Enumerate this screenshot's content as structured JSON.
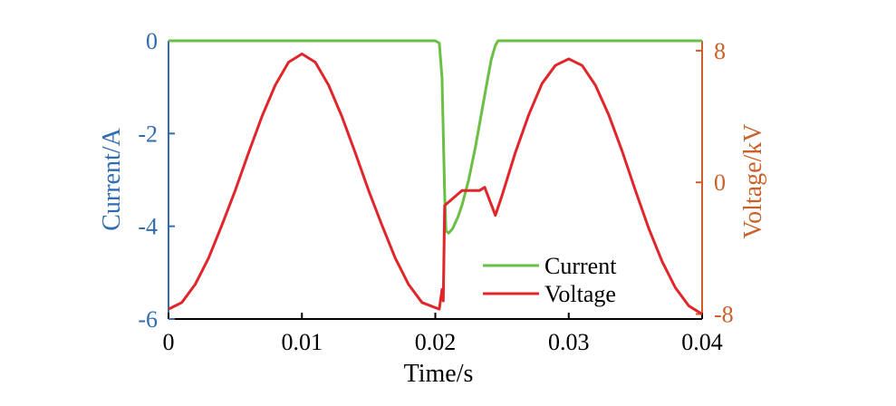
{
  "chart_data": {
    "type": "line",
    "xlabel": "Time/s",
    "ylabel_left": "Current/A",
    "ylabel_right": "Voltage/kV",
    "x_ticks": [
      0,
      0.01,
      0.02,
      0.03,
      0.04
    ],
    "x_tick_labels": [
      "0",
      "0.01",
      "0.02",
      "0.03",
      "0.04"
    ],
    "y_left_ticks": [
      0,
      -2,
      -4,
      -6
    ],
    "y_left_tick_labels": [
      "0",
      "-2",
      "-4",
      "-6"
    ],
    "y_right_ticks": [
      8,
      0,
      -8
    ],
    "y_right_tick_labels": [
      "8",
      "0",
      "-8"
    ],
    "xlim": [
      0,
      0.04
    ],
    "ylim_left": [
      -6,
      0
    ],
    "ylim_right": [
      -8.3,
      8.6
    ],
    "grid": false,
    "legend_position": "bottom-right",
    "colors": {
      "current": "#6abf45",
      "voltage": "#e0262a",
      "left_axis": "#2f6db2",
      "right_axis": "#c8622a"
    },
    "series": [
      {
        "name": "Current",
        "axis": "left",
        "x": [
          0,
          0.005,
          0.01,
          0.015,
          0.02,
          0.0203,
          0.0205,
          0.0206,
          0.0207,
          0.0208,
          0.021,
          0.0213,
          0.0217,
          0.022,
          0.0225,
          0.023,
          0.0235,
          0.024,
          0.0242,
          0.0245,
          0.0247,
          0.025,
          0.03,
          0.035,
          0.04
        ],
        "values": [
          0,
          0,
          0,
          0,
          0,
          -0.05,
          -0.8,
          -2.0,
          -3.3,
          -4.1,
          -4.15,
          -4.05,
          -3.8,
          -3.55,
          -3.0,
          -2.3,
          -1.5,
          -0.7,
          -0.4,
          -0.1,
          0,
          0,
          0,
          0,
          0
        ]
      },
      {
        "name": "Voltage",
        "axis": "right",
        "x": [
          0,
          0.001,
          0.002,
          0.003,
          0.004,
          0.005,
          0.006,
          0.007,
          0.008,
          0.009,
          0.01,
          0.011,
          0.012,
          0.013,
          0.014,
          0.015,
          0.016,
          0.017,
          0.018,
          0.019,
          0.0203,
          0.0205,
          0.0206,
          0.0207,
          0.021,
          0.022,
          0.0233,
          0.0237,
          0.0245,
          0.025,
          0.026,
          0.027,
          0.028,
          0.029,
          0.03,
          0.031,
          0.032,
          0.033,
          0.034,
          0.035,
          0.036,
          0.037,
          0.038,
          0.039,
          0.04
        ],
        "values": [
          -7.7,
          -7.3,
          -6.2,
          -4.6,
          -2.6,
          -0.5,
          1.8,
          4.0,
          5.9,
          7.3,
          7.8,
          7.3,
          5.9,
          4.0,
          1.8,
          -0.5,
          -2.6,
          -4.6,
          -6.2,
          -7.3,
          -7.7,
          -6.5,
          -7.2,
          -1.4,
          -1.2,
          -0.5,
          -0.5,
          -0.3,
          -2.0,
          -0.8,
          1.8,
          4.1,
          6.0,
          7.1,
          7.5,
          7.1,
          5.9,
          4.1,
          1.9,
          -0.5,
          -2.8,
          -4.8,
          -6.4,
          -7.5,
          -8.0
        ]
      }
    ]
  }
}
